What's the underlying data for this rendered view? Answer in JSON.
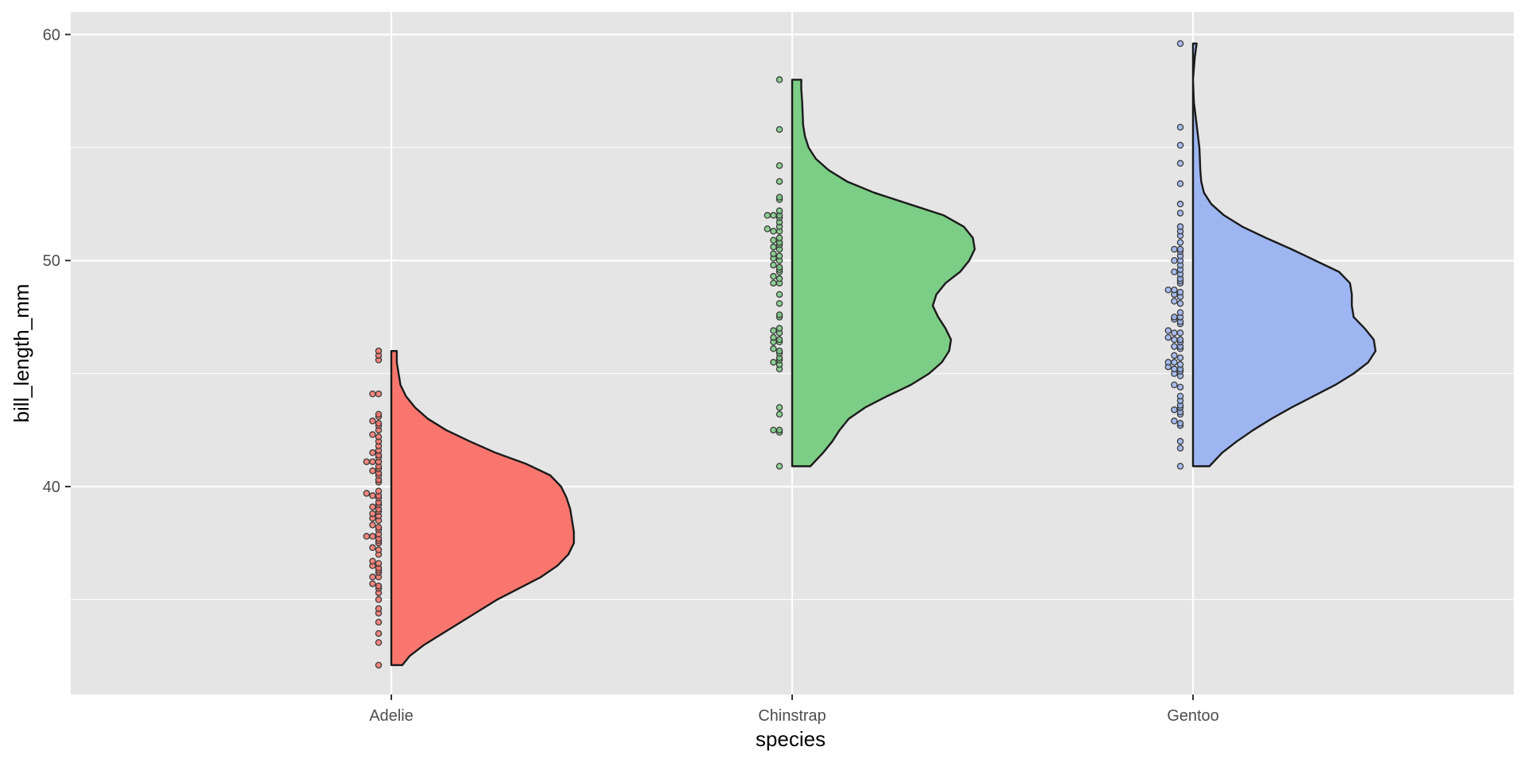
{
  "chart_data": {
    "type": "violin",
    "title": "",
    "xlabel": "species",
    "ylabel": "bill_length_mm",
    "categories": [
      "Adelie",
      "Chinstrap",
      "Gentoo"
    ],
    "ylim": [
      30.8,
      61.0
    ],
    "yticks": [
      40,
      50,
      60
    ],
    "yticks_minor": [
      35,
      45,
      55
    ],
    "grid": true,
    "legend": "none",
    "series": [
      {
        "category": "Adelie",
        "fill": "#F8766D",
        "point_color": "#E0645C",
        "min": 32.1,
        "max": 46.0,
        "density": [
          [
            32.1,
            0.0
          ],
          [
            32.1,
            0.06
          ],
          [
            32.5,
            0.1
          ],
          [
            33.0,
            0.18
          ],
          [
            33.5,
            0.28
          ],
          [
            34.0,
            0.38
          ],
          [
            34.5,
            0.48
          ],
          [
            35.0,
            0.58
          ],
          [
            35.5,
            0.7
          ],
          [
            36.0,
            0.82
          ],
          [
            36.5,
            0.91
          ],
          [
            37.0,
            0.97
          ],
          [
            37.5,
            1.0
          ],
          [
            38.0,
            1.0
          ],
          [
            38.5,
            0.99
          ],
          [
            39.0,
            0.98
          ],
          [
            39.5,
            0.96
          ],
          [
            40.0,
            0.93
          ],
          [
            40.5,
            0.87
          ],
          [
            41.0,
            0.74
          ],
          [
            41.5,
            0.57
          ],
          [
            42.0,
            0.43
          ],
          [
            42.5,
            0.3
          ],
          [
            43.0,
            0.2
          ],
          [
            43.5,
            0.13
          ],
          [
            44.0,
            0.08
          ],
          [
            44.5,
            0.05
          ],
          [
            45.0,
            0.04
          ],
          [
            45.5,
            0.03
          ],
          [
            46.0,
            0.03
          ],
          [
            46.0,
            0.0
          ]
        ],
        "points": [
          32.1,
          33.1,
          33.5,
          34.0,
          34.4,
          34.6,
          35.0,
          35.3,
          35.5,
          35.6,
          35.7,
          36.0,
          36.0,
          36.2,
          36.3,
          36.4,
          36.5,
          36.6,
          36.7,
          37.0,
          37.2,
          37.3,
          37.5,
          37.6,
          37.7,
          37.8,
          37.8,
          37.9,
          38.1,
          38.2,
          38.3,
          38.5,
          38.6,
          38.7,
          38.8,
          38.9,
          39.0,
          39.1,
          39.2,
          39.3,
          39.5,
          39.6,
          39.6,
          39.7,
          39.8,
          40.2,
          40.3,
          40.5,
          40.6,
          40.7,
          40.8,
          40.9,
          41.1,
          41.1,
          41.1,
          41.3,
          41.4,
          41.5,
          41.6,
          41.8,
          42.0,
          42.2,
          42.3,
          42.5,
          42.7,
          42.8,
          42.9,
          43.1,
          43.2,
          44.1,
          44.1,
          45.6,
          45.8,
          46.0
        ]
      },
      {
        "category": "Chinstrap",
        "fill": "#7CCD85",
        "point_color": "#4DAA5A",
        "min": 40.9,
        "max": 58.0,
        "density": [
          [
            40.9,
            0.0
          ],
          [
            40.9,
            0.1
          ],
          [
            41.5,
            0.17
          ],
          [
            42.0,
            0.22
          ],
          [
            42.5,
            0.26
          ],
          [
            43.0,
            0.31
          ],
          [
            43.5,
            0.4
          ],
          [
            44.0,
            0.52
          ],
          [
            44.5,
            0.65
          ],
          [
            45.0,
            0.75
          ],
          [
            45.5,
            0.82
          ],
          [
            46.0,
            0.86
          ],
          [
            46.5,
            0.87
          ],
          [
            47.0,
            0.84
          ],
          [
            47.5,
            0.8
          ],
          [
            48.0,
            0.77
          ],
          [
            48.5,
            0.79
          ],
          [
            49.0,
            0.84
          ],
          [
            49.5,
            0.92
          ],
          [
            50.0,
            0.97
          ],
          [
            50.5,
            1.0
          ],
          [
            51.0,
            0.99
          ],
          [
            51.5,
            0.94
          ],
          [
            52.0,
            0.83
          ],
          [
            52.5,
            0.64
          ],
          [
            53.0,
            0.45
          ],
          [
            53.5,
            0.3
          ],
          [
            54.0,
            0.2
          ],
          [
            54.5,
            0.13
          ],
          [
            55.0,
            0.09
          ],
          [
            55.5,
            0.07
          ],
          [
            56.0,
            0.06
          ],
          [
            57.0,
            0.055
          ],
          [
            57.6,
            0.05
          ],
          [
            58.0,
            0.05
          ],
          [
            58.0,
            0.0
          ]
        ],
        "points": [
          40.9,
          42.4,
          42.5,
          42.5,
          43.2,
          43.5,
          45.2,
          45.4,
          45.5,
          45.6,
          45.7,
          45.9,
          46.0,
          46.1,
          46.4,
          46.4,
          46.5,
          46.6,
          46.8,
          46.9,
          47.0,
          47.5,
          47.6,
          48.1,
          48.5,
          49.0,
          49.0,
          49.2,
          49.3,
          49.5,
          49.6,
          49.7,
          49.8,
          50.0,
          50.1,
          50.2,
          50.3,
          50.5,
          50.6,
          50.7,
          50.8,
          50.9,
          51.0,
          51.3,
          51.3,
          51.4,
          51.5,
          51.7,
          51.9,
          52.0,
          52.0,
          52.0,
          52.2,
          52.7,
          52.8,
          53.5,
          54.2,
          55.8,
          58.0
        ]
      },
      {
        "category": "Gentoo",
        "fill": "#9DB6F2",
        "point_color": "#6C8BD0",
        "min": 40.9,
        "max": 59.6,
        "density": [
          [
            40.9,
            0.0
          ],
          [
            40.9,
            0.09
          ],
          [
            41.5,
            0.16
          ],
          [
            42.0,
            0.24
          ],
          [
            42.5,
            0.33
          ],
          [
            43.0,
            0.43
          ],
          [
            43.5,
            0.54
          ],
          [
            44.0,
            0.66
          ],
          [
            44.5,
            0.78
          ],
          [
            45.0,
            0.88
          ],
          [
            45.5,
            0.96
          ],
          [
            46.0,
            1.0
          ],
          [
            46.5,
            0.99
          ],
          [
            47.0,
            0.94
          ],
          [
            47.5,
            0.88
          ],
          [
            48.0,
            0.87
          ],
          [
            48.5,
            0.87
          ],
          [
            49.0,
            0.86
          ],
          [
            49.5,
            0.8
          ],
          [
            50.0,
            0.67
          ],
          [
            50.5,
            0.54
          ],
          [
            51.0,
            0.4
          ],
          [
            51.5,
            0.27
          ],
          [
            52.0,
            0.17
          ],
          [
            52.5,
            0.1
          ],
          [
            53.0,
            0.06
          ],
          [
            53.5,
            0.045
          ],
          [
            54.0,
            0.04
          ],
          [
            55.0,
            0.035
          ],
          [
            56.0,
            0.02
          ],
          [
            57.0,
            0.005
          ],
          [
            58.0,
            0.0
          ],
          [
            59.0,
            0.01
          ],
          [
            59.6,
            0.02
          ],
          [
            59.6,
            0.0
          ]
        ],
        "points": [
          40.9,
          41.7,
          42.0,
          42.7,
          42.8,
          42.9,
          43.2,
          43.3,
          43.4,
          43.5,
          43.6,
          43.8,
          44.0,
          44.4,
          44.5,
          44.9,
          45.0,
          45.1,
          45.2,
          45.2,
          45.3,
          45.4,
          45.5,
          45.5,
          45.7,
          45.8,
          46.1,
          46.2,
          46.2,
          46.4,
          46.5,
          46.5,
          46.6,
          46.8,
          46.8,
          46.9,
          47.2,
          47.3,
          47.4,
          47.5,
          47.5,
          47.7,
          48.1,
          48.2,
          48.4,
          48.5,
          48.6,
          48.7,
          48.7,
          49.0,
          49.1,
          49.2,
          49.4,
          49.5,
          49.6,
          49.8,
          50.0,
          50.0,
          50.2,
          50.4,
          50.5,
          50.5,
          50.8,
          51.1,
          51.3,
          51.5,
          52.1,
          52.5,
          53.4,
          54.3,
          55.1,
          55.9,
          59.6
        ]
      }
    ]
  }
}
